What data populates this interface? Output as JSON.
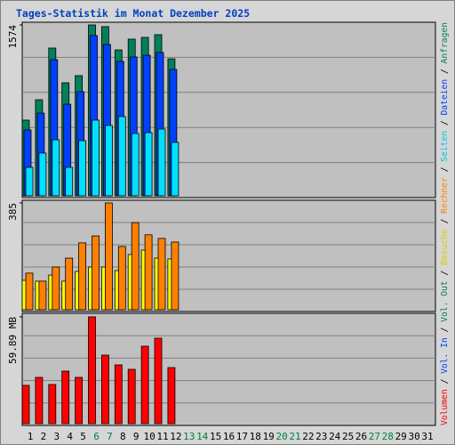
{
  "title": "Tages-Statistik im Monat Dezember 2025",
  "x_labels": [
    "1",
    "2",
    "3",
    "4",
    "5",
    "6",
    "7",
    "8",
    "9",
    "10",
    "11",
    "12",
    "13",
    "14",
    "15",
    "16",
    "17",
    "18",
    "19",
    "20",
    "21",
    "22",
    "23",
    "24",
    "25",
    "26",
    "27",
    "28",
    "29",
    "30",
    "31"
  ],
  "x_label_colors": [
    "#000000",
    "#000000",
    "#000000",
    "#000000",
    "#000000",
    "#008040",
    "#008040",
    "#000000",
    "#000000",
    "#000000",
    "#000000",
    "#000000",
    "#008040",
    "#008040",
    "#000000",
    "#000000",
    "#000000",
    "#000000",
    "#000000",
    "#008040",
    "#008040",
    "#000000",
    "#000000",
    "#000000",
    "#000000",
    "#000000",
    "#008040",
    "#008040",
    "#000000",
    "#000000",
    "#000000"
  ],
  "legend_separator": " / ",
  "legend": [
    {
      "name": "Volumen",
      "color": "#ff0000"
    },
    {
      "name": "Vol. In",
      "color": "#0040ff"
    },
    {
      "name": "Vol. Out",
      "color": "#00805c"
    },
    {
      "name": "Besuche",
      "color": "#d0d000"
    },
    {
      "name": "Rechner",
      "color": "#ff8000"
    },
    {
      "name": "Seiten",
      "color": "#00c8e8"
    },
    {
      "name": "Dateien",
      "color": "#0040ff"
    },
    {
      "name": "Anfragen",
      "color": "#00805c"
    }
  ],
  "chart_data": [
    {
      "type": "bar",
      "ylim": [
        0,
        1574
      ],
      "yticks": [
        1574
      ],
      "series": [
        {
          "name": "Anfragen",
          "color": "#00805c",
          "values": [
            697,
            885,
            1361,
            1041,
            1107,
            1574,
            1558,
            1344,
            1443,
            1459,
            1484,
            1262,
            null,
            null,
            null,
            null,
            null,
            null,
            null,
            null,
            null,
            null,
            null,
            null,
            null,
            null,
            null,
            null,
            null,
            null,
            null
          ]
        },
        {
          "name": "Dateien",
          "color": "#0040ff",
          "values": [
            607,
            762,
            1254,
            844,
            959,
            1476,
            1394,
            1238,
            1279,
            1295,
            1320,
            1164,
            null,
            null,
            null,
            null,
            null,
            null,
            null,
            null,
            null,
            null,
            null,
            null,
            null,
            null,
            null,
            null,
            null,
            null,
            null
          ]
        },
        {
          "name": "Seiten",
          "color": "#00e0ff",
          "values": [
            262,
            394,
            516,
            262,
            508,
            697,
            648,
            730,
            574,
            582,
            615,
            492,
            null,
            null,
            null,
            null,
            null,
            null,
            null,
            null,
            null,
            null,
            null,
            null,
            null,
            null,
            null,
            null,
            null,
            null,
            null
          ]
        }
      ]
    },
    {
      "type": "bar",
      "ylim": [
        0,
        385
      ],
      "yticks": [
        385
      ],
      "series": [
        {
          "name": "Besuche",
          "color": "#ffff00",
          "values": [
            106,
            103,
            125,
            103,
            138,
            154,
            154,
            141,
            199,
            215,
            186,
            183,
            null,
            null,
            null,
            null,
            null,
            null,
            null,
            null,
            null,
            null,
            null,
            null,
            null,
            null,
            null,
            null,
            null,
            null,
            null
          ]
        },
        {
          "name": "Rechner",
          "color": "#ff8000",
          "values": [
            132,
            103,
            154,
            186,
            241,
            266,
            385,
            228,
            314,
            270,
            257,
            244,
            null,
            null,
            null,
            null,
            null,
            null,
            null,
            null,
            null,
            null,
            null,
            null,
            null,
            null,
            null,
            null,
            null,
            null,
            null
          ]
        }
      ]
    },
    {
      "type": "bar",
      "ylim": [
        0,
        59.89
      ],
      "yticks": [
        {
          "value": 59.89,
          "label": "59.89 MB"
        }
      ],
      "series": [
        {
          "name": "Volumen",
          "color": "#ff0000",
          "values": [
            21.46,
            25.95,
            21.96,
            29.45,
            25.95,
            59.89,
            38.43,
            32.94,
            30.45,
            43.42,
            47.91,
            31.44,
            null,
            null,
            null,
            null,
            null,
            null,
            null,
            null,
            null,
            null,
            null,
            null,
            null,
            null,
            null,
            null,
            null,
            null,
            null
          ]
        }
      ]
    }
  ]
}
